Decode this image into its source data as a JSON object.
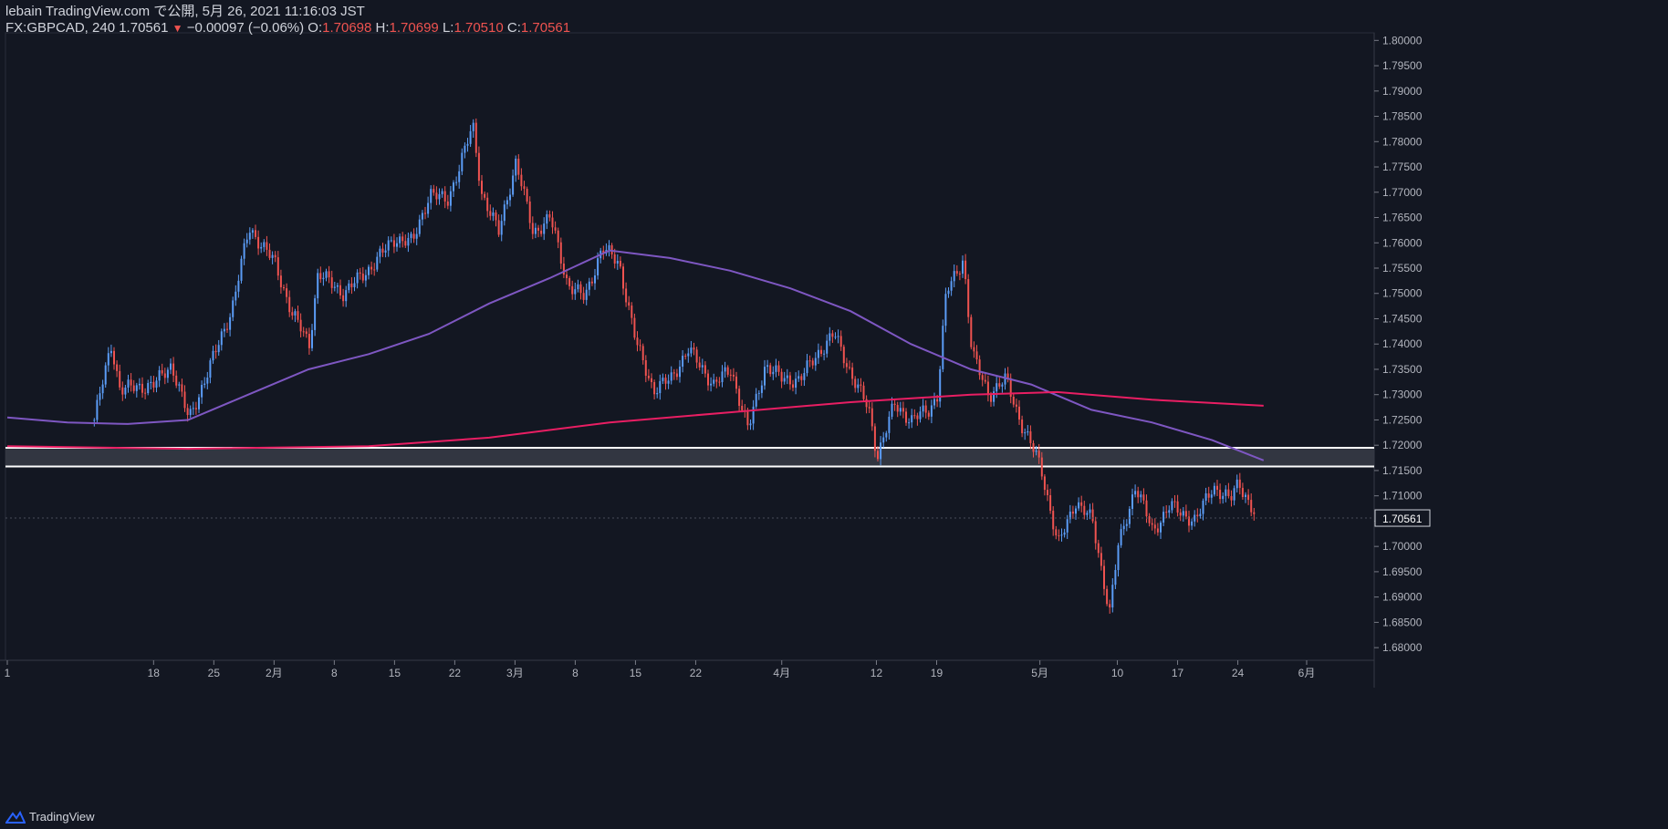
{
  "header": {
    "publish_line": "lebain TradingView.com で公開, 5月 26, 2021 11:16:03 JST",
    "symbol": "FX:GBPCAD, 240",
    "last": "1.70561",
    "change": "−0.00097 (−0.06%)",
    "o_label": "O:",
    "o_value": "1.70698",
    "h_label": "H:",
    "h_value": "1.70699",
    "l_label": "L:",
    "l_value": "1.70510",
    "c_label": "C:",
    "c_value": "1.70561"
  },
  "footer": {
    "brand": "TradingView",
    "icon": "tradingview-logo-icon"
  },
  "colors": {
    "background": "#131722",
    "up": "#2962ff",
    "up_fill": "#5b9cf6",
    "down": "#ef5350",
    "ma_fast": "#7e57c2",
    "ma_slow": "#e91e63",
    "zone_fill": "#363a45",
    "zone_line": "#ffffff",
    "axis_text": "#b2b5be",
    "price_badge": "#131722"
  },
  "chart_data": {
    "type": "candlestick",
    "symbol": "FX:GBPCAD",
    "timeframe": "240",
    "ylim": [
      1.6775,
      1.8015
    ],
    "y_ticks": [
      "1.68000",
      "1.68500",
      "1.69000",
      "1.69500",
      "1.70000",
      "1.70500",
      "1.71000",
      "1.71500",
      "1.72000",
      "1.72500",
      "1.73000",
      "1.73500",
      "1.74000",
      "1.74500",
      "1.75000",
      "1.75500",
      "1.76000",
      "1.76500",
      "1.77000",
      "1.77500",
      "1.78000",
      "1.78500",
      "1.79000",
      "1.79500",
      "1.80000"
    ],
    "last_price_label": "1.70561",
    "x_ticks": [
      {
        "label": "1",
        "date": "2021-01-01"
      },
      {
        "label": "18",
        "date": "2021-01-18"
      },
      {
        "label": "25",
        "date": "2021-01-25"
      },
      {
        "label": "2月",
        "date": "2021-02-01"
      },
      {
        "label": "8",
        "date": "2021-02-08"
      },
      {
        "label": "15",
        "date": "2021-02-15"
      },
      {
        "label": "22",
        "date": "2021-02-22"
      },
      {
        "label": "3月",
        "date": "2021-03-01"
      },
      {
        "label": "8",
        "date": "2021-03-08"
      },
      {
        "label": "15",
        "date": "2021-03-15"
      },
      {
        "label": "22",
        "date": "2021-03-22"
      },
      {
        "label": "4月",
        "date": "2021-04-01"
      },
      {
        "label": "12",
        "date": "2021-04-12"
      },
      {
        "label": "19",
        "date": "2021-04-19"
      },
      {
        "label": "5月",
        "date": "2021-05-01"
      },
      {
        "label": "10",
        "date": "2021-05-10"
      },
      {
        "label": "17",
        "date": "2021-05-17"
      },
      {
        "label": "24",
        "date": "2021-05-24"
      },
      {
        "label": "6月",
        "date": "2021-06-01"
      }
    ],
    "price_path": [
      [
        "2021-01-11",
        1.725
      ],
      [
        "2021-01-13",
        1.74
      ],
      [
        "2021-01-14",
        1.731
      ],
      [
        "2021-01-18",
        1.732
      ],
      [
        "2021-01-20",
        1.736
      ],
      [
        "2021-01-22",
        1.725
      ],
      [
        "2021-01-25",
        1.738
      ],
      [
        "2021-01-27",
        1.747
      ],
      [
        "2021-01-29",
        1.763
      ],
      [
        "2021-02-01",
        1.756
      ],
      [
        "2021-02-03",
        1.746
      ],
      [
        "2021-02-05",
        1.74
      ],
      [
        "2021-02-06",
        1.754
      ],
      [
        "2021-02-09",
        1.75
      ],
      [
        "2021-02-12",
        1.755
      ],
      [
        "2021-02-15",
        1.761
      ],
      [
        "2021-02-17",
        1.76
      ],
      [
        "2021-02-19",
        1.77
      ],
      [
        "2021-02-21",
        1.768
      ],
      [
        "2021-02-24",
        1.783
      ],
      [
        "2021-02-25",
        1.77
      ],
      [
        "2021-02-27",
        1.762
      ],
      [
        "2021-03-01",
        1.776
      ],
      [
        "2021-03-03",
        1.762
      ],
      [
        "2021-03-05",
        1.765
      ],
      [
        "2021-03-07",
        1.752
      ],
      [
        "2021-03-09",
        1.749
      ],
      [
        "2021-03-11",
        1.759
      ],
      [
        "2021-03-13",
        1.756
      ],
      [
        "2021-03-15",
        1.74
      ],
      [
        "2021-03-17",
        1.731
      ],
      [
        "2021-03-19",
        1.733
      ],
      [
        "2021-03-21",
        1.739
      ],
      [
        "2021-03-24",
        1.732
      ],
      [
        "2021-03-26",
        1.735
      ],
      [
        "2021-03-28",
        1.723
      ],
      [
        "2021-03-30",
        1.736
      ],
      [
        "2021-04-01",
        1.733
      ],
      [
        "2021-04-03",
        1.733
      ],
      [
        "2021-04-05",
        1.738
      ],
      [
        "2021-04-07",
        1.742
      ],
      [
        "2021-04-09",
        1.734
      ],
      [
        "2021-04-11",
        1.727
      ],
      [
        "2021-04-12",
        1.718
      ],
      [
        "2021-04-14",
        1.728
      ],
      [
        "2021-04-16",
        1.725
      ],
      [
        "2021-04-18",
        1.727
      ],
      [
        "2021-04-19",
        1.73
      ],
      [
        "2021-04-20",
        1.75
      ],
      [
        "2021-04-22",
        1.757
      ],
      [
        "2021-04-23",
        1.738
      ],
      [
        "2021-04-25",
        1.73
      ],
      [
        "2021-04-27",
        1.733
      ],
      [
        "2021-04-29",
        1.723
      ],
      [
        "2021-05-01",
        1.716
      ],
      [
        "2021-05-03",
        1.7
      ],
      [
        "2021-05-05",
        1.709
      ],
      [
        "2021-05-07",
        1.705
      ],
      [
        "2021-05-09",
        1.687
      ],
      [
        "2021-05-10",
        1.7
      ],
      [
        "2021-05-12",
        1.712
      ],
      [
        "2021-05-14",
        1.703
      ],
      [
        "2021-05-16",
        1.708
      ],
      [
        "2021-05-19",
        1.705
      ],
      [
        "2021-05-21",
        1.712
      ],
      [
        "2021-05-23",
        1.709
      ],
      [
        "2021-05-24",
        1.713
      ],
      [
        "2021-05-26",
        1.7056
      ]
    ],
    "ma_fast": [
      [
        "2021-01-01",
        1.7255
      ],
      [
        "2021-01-08",
        1.7245
      ],
      [
        "2021-01-15",
        1.7242
      ],
      [
        "2021-01-22",
        1.725
      ],
      [
        "2021-01-29",
        1.73
      ],
      [
        "2021-02-05",
        1.735
      ],
      [
        "2021-02-12",
        1.738
      ],
      [
        "2021-02-19",
        1.742
      ],
      [
        "2021-02-26",
        1.748
      ],
      [
        "2021-03-05",
        1.753
      ],
      [
        "2021-03-12",
        1.7585
      ],
      [
        "2021-03-19",
        1.757
      ],
      [
        "2021-03-26",
        1.7545
      ],
      [
        "2021-04-02",
        1.751
      ],
      [
        "2021-04-09",
        1.7465
      ],
      [
        "2021-04-16",
        1.74
      ],
      [
        "2021-04-23",
        1.735
      ],
      [
        "2021-04-30",
        1.732
      ],
      [
        "2021-05-07",
        1.727
      ],
      [
        "2021-05-14",
        1.7245
      ],
      [
        "2021-05-21",
        1.721
      ],
      [
        "2021-05-27",
        1.717
      ]
    ],
    "ma_slow": [
      [
        "2021-01-01",
        1.7198
      ],
      [
        "2021-01-22",
        1.7193
      ],
      [
        "2021-02-12",
        1.7198
      ],
      [
        "2021-02-26",
        1.7215
      ],
      [
        "2021-03-12",
        1.7245
      ],
      [
        "2021-03-26",
        1.7265
      ],
      [
        "2021-04-09",
        1.7285
      ],
      [
        "2021-04-23",
        1.73
      ],
      [
        "2021-05-03",
        1.7305
      ],
      [
        "2021-05-14",
        1.729
      ],
      [
        "2021-05-27",
        1.7278
      ]
    ],
    "zone": {
      "top": 1.7195,
      "bottom": 1.7158
    },
    "grid": false
  }
}
